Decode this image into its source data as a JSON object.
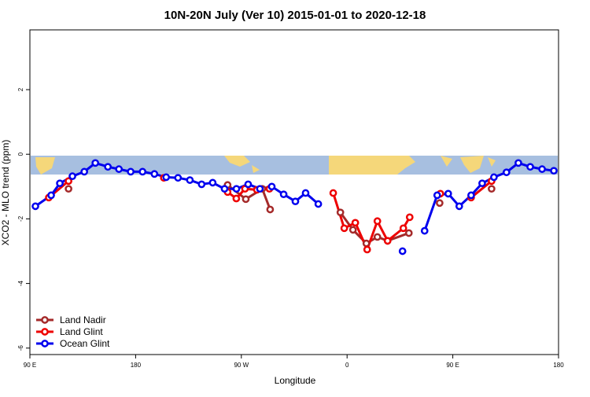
{
  "chart_data": {
    "type": "line",
    "title": "10N-20N July (Ver 10)   2015-01-01 to 2020-12-18",
    "x_label": "Longitude",
    "y_label": "XCO2 - MLO trend (ppm)",
    "xlim": [
      90,
      540
    ],
    "xticks": [
      {
        "value": 90,
        "label": "90 E"
      },
      {
        "value": 180,
        "label": "180"
      },
      {
        "value": 270,
        "label": "90 W"
      },
      {
        "value": 360,
        "label": "0"
      },
      {
        "value": 450,
        "label": "90 E"
      },
      {
        "value": 540,
        "label": "180"
      }
    ],
    "ylim": [
      -6.2,
      3.85
    ],
    "yticks": [
      2,
      0,
      -2,
      -4,
      -6
    ],
    "legend": "bottom-left",
    "series": [
      {
        "name": "Land Nadir",
        "color": "#a52a2a",
        "x": [
          122.9,
          null,
          258.3,
          273.8,
          287.8,
          294.5,
          null,
          354.3,
          365,
          376.4,
          385.8,
          394.5,
          412.6,
          null,
          438.8,
          null,
          483
        ],
        "values": [
          -1.07,
          null,
          -0.95,
          -1.39,
          -1.07,
          -1.71,
          null,
          -1.8,
          -2.34,
          -2.76,
          -2.56,
          -2.68,
          -2.44,
          null,
          -1.51,
          null,
          -1.07
        ]
      },
      {
        "name": "Land Glint",
        "color": "#ee0000",
        "x": [
          106.1,
          122.9,
          null,
          204,
          null,
          258.3,
          265.7,
          273.1,
          283.2,
          293.9,
          null,
          348.2,
          357.6,
          367,
          377.1,
          385.8,
          394.5,
          407.9,
          413.3,
          null,
          439.4,
          null,
          465.6,
          483
        ],
        "values": [
          -1.34,
          -0.83,
          null,
          -0.73,
          null,
          -1.17,
          -1.37,
          -1.07,
          -1.1,
          -1.07,
          null,
          -1.2,
          -2.29,
          -2.12,
          -2.95,
          -2.07,
          -2.68,
          -2.29,
          -1.95,
          null,
          -1.22,
          null,
          -1.34,
          -0.83
        ]
      },
      {
        "name": "Ocean Glint",
        "color": "#0000ee",
        "x": [
          94.7,
          108.1,
          115.5,
          126.2,
          136.3,
          145.7,
          156.4,
          165.8,
          175.8,
          185.9,
          196,
          206,
          216.1,
          226.2,
          236.2,
          245.6,
          255.7,
          265.8,
          275.8,
          285.8,
          295.9,
          306,
          316,
          324.7,
          335.5,
          null,
          407.2,
          null,
          426,
          436.7,
          446.1,
          455.5,
          465.6,
          475,
          485,
          495.7,
          505.8,
          515.9,
          526,
          536
        ],
        "values": [
          -1.61,
          -1.27,
          -0.9,
          -0.68,
          -0.54,
          -0.27,
          -0.39,
          -0.46,
          -0.54,
          -0.54,
          -0.61,
          -0.71,
          -0.73,
          -0.8,
          -0.93,
          -0.88,
          -1.07,
          -1.07,
          -0.93,
          -1.07,
          -1.0,
          -1.24,
          -1.46,
          -1.2,
          -1.54,
          null,
          -3.0,
          null,
          -2.37,
          -1.27,
          -1.22,
          -1.61,
          -1.27,
          -0.9,
          -0.71,
          -0.56,
          -0.27,
          -0.39,
          -0.46,
          -0.51
        ]
      }
    ]
  }
}
